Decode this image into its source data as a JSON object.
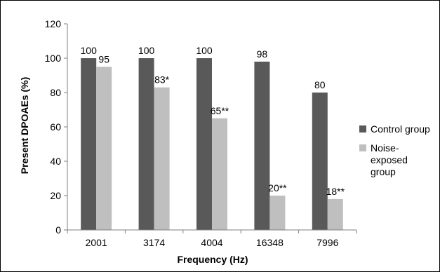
{
  "chart_data": {
    "type": "bar",
    "xlabel": "Frequency (Hz)",
    "ylabel": "Present DPOAEs (%)",
    "ylim": [
      0,
      120
    ],
    "yticks": [
      0,
      20,
      40,
      60,
      80,
      100,
      120
    ],
    "grid": false,
    "legend_position": "right",
    "categories": [
      "2001",
      "3174",
      "4004",
      "16348",
      "7996"
    ],
    "series": [
      {
        "name": "Control group",
        "color": "#595959",
        "values": [
          100,
          100,
          100,
          98,
          80
        ],
        "labels": [
          "100",
          "100",
          "100",
          "98",
          "80"
        ]
      },
      {
        "name": "Noise-exposed group",
        "legend_lines": [
          "Noise-",
          "exposed",
          "group"
        ],
        "color": "#bfbfbf",
        "values": [
          95,
          83,
          65,
          20,
          18
        ],
        "labels": [
          "95",
          "83*",
          "65**",
          "20**",
          "18**"
        ]
      }
    ]
  }
}
